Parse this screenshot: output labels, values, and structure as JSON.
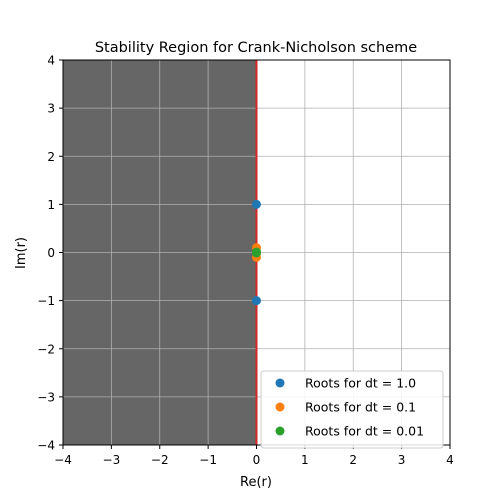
{
  "chart_data": {
    "type": "scatter",
    "title": "Stability Region for Crank-Nicholson scheme",
    "xlabel": "Re(r)",
    "ylabel": "Im(r)",
    "xlim": [
      -4,
      4
    ],
    "ylim": [
      -4,
      4
    ],
    "xticks": [
      -4,
      -3,
      -2,
      -1,
      0,
      1,
      2,
      3,
      4
    ],
    "yticks": [
      -4,
      -3,
      -2,
      -1,
      0,
      1,
      2,
      3,
      4
    ],
    "tick_labels": [
      "−4",
      "−3",
      "−2",
      "−1",
      "0",
      "1",
      "2",
      "3",
      "4"
    ],
    "grid": true,
    "legend_position": "bottom-right",
    "stable_region": {
      "x_from": -4,
      "x_to": 0,
      "color": "#666666"
    },
    "boundary_line": {
      "x": 0,
      "color": "#d62728"
    },
    "series": [
      {
        "name": "Roots for dt = 1.0",
        "color": "#1f77b4",
        "points": [
          {
            "x": 0,
            "y": 1.0
          },
          {
            "x": 0,
            "y": -1.0
          }
        ]
      },
      {
        "name": "Roots for dt = 0.1",
        "color": "#ff7f0e",
        "points": [
          {
            "x": 0,
            "y": 0.1
          },
          {
            "x": 0,
            "y": -0.1
          }
        ]
      },
      {
        "name": "Roots for dt = 0.01",
        "color": "#2ca02c",
        "points": [
          {
            "x": 0,
            "y": 0.01
          },
          {
            "x": 0,
            "y": -0.01
          }
        ]
      }
    ]
  }
}
